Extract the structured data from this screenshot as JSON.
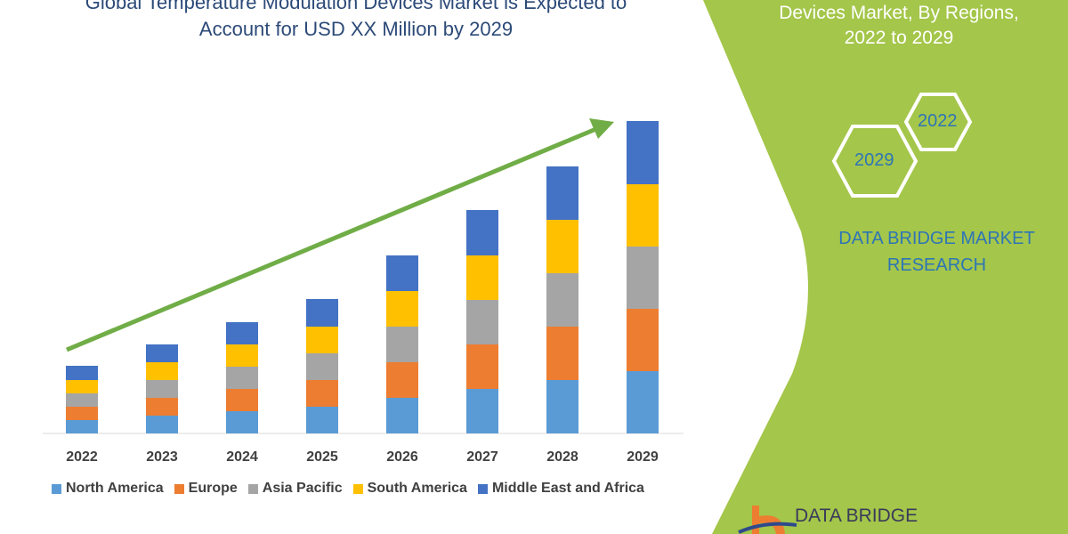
{
  "left_title": {
    "line1": "Global Temperature Modulation Devices Market is Expected to",
    "line2": "Account for USD XX Million by 2029"
  },
  "right_panel": {
    "title_line1": "Devices Market, By Regions,",
    "title_line2": "2022 to 2029",
    "hex_2022": "2022",
    "hex_2029": "2029",
    "brand_line1": "DATA BRIDGE MARKET",
    "brand_line2": "RESEARCH",
    "logo_text": "DATA BRIDGE",
    "panel_color": "#a4c64a"
  },
  "watermark": "DATA BRIDGE MARKET RESEARCH",
  "chart_data": {
    "type": "bar",
    "stacked": true,
    "title": "",
    "xlabel": "",
    "ylabel": "",
    "categories": [
      "2022",
      "2023",
      "2024",
      "2025",
      "2026",
      "2027",
      "2028",
      "2029"
    ],
    "series": [
      {
        "name": "North America",
        "color": "#5b9bd5",
        "values": [
          15,
          20,
          25,
          30,
          40,
          50,
          60,
          70
        ]
      },
      {
        "name": "Europe",
        "color": "#ed7d31",
        "values": [
          15,
          20,
          25,
          30,
          40,
          50,
          60,
          70
        ]
      },
      {
        "name": "Asia Pacific",
        "color": "#a5a5a5",
        "values": [
          15,
          20,
          25,
          30,
          40,
          50,
          60,
          70
        ]
      },
      {
        "name": "South America",
        "color": "#ffc000",
        "values": [
          15,
          20,
          25,
          30,
          40,
          50,
          60,
          70
        ]
      },
      {
        "name": "Middle East and Africa",
        "color": "#4472c4",
        "values": [
          16,
          20,
          25,
          31,
          40,
          51,
          60,
          71
        ]
      }
    ],
    "trend_arrow": {
      "color": "#70ad47",
      "direction": "up-right"
    },
    "legend_position": "bottom",
    "grid": false
  }
}
